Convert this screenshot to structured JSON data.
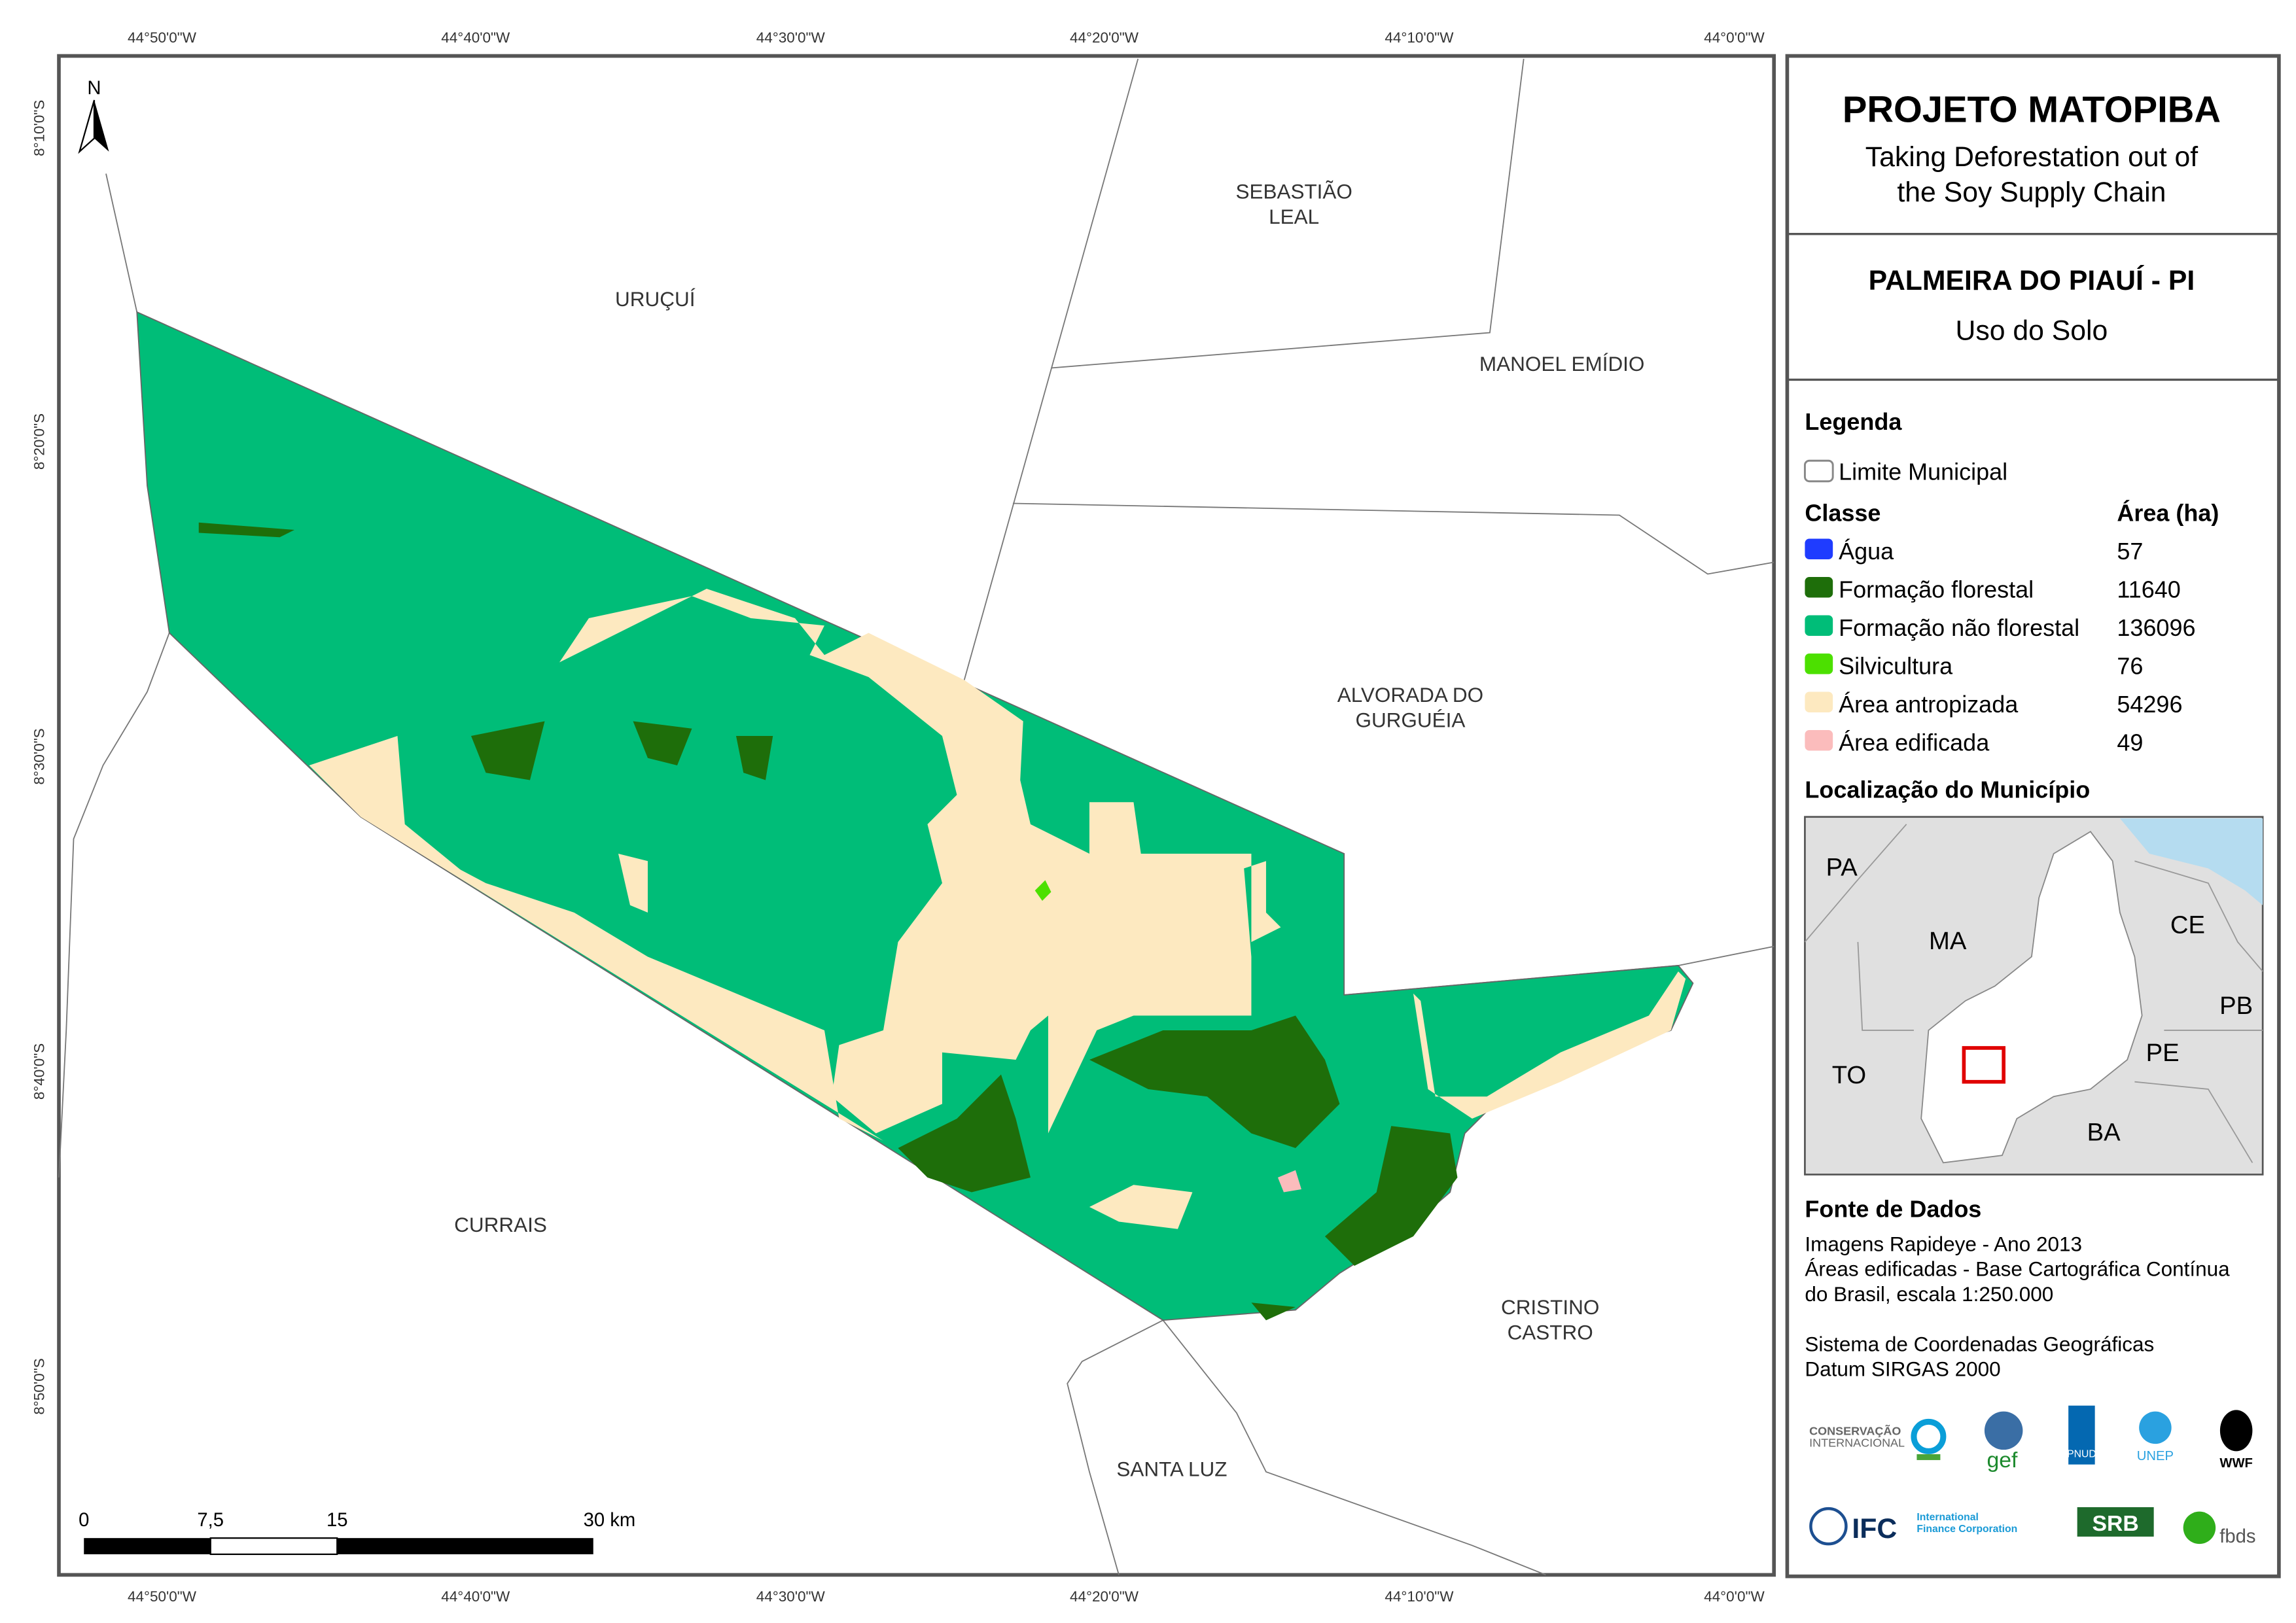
{
  "header": {
    "title": "PROJETO MATOPIBA",
    "subtitle_line1": "Taking Deforestation out of",
    "subtitle_line2": "the Soy Supply Chain",
    "municipality": "PALMEIRA DO PIAUÍ - PI",
    "theme": "Uso do Solo"
  },
  "legend": {
    "title": "Legenda",
    "boundary_label": "Limite Municipal",
    "class_header": "Classe",
    "area_header": "Área (ha)",
    "classes": [
      {
        "label": "Água",
        "area": "57",
        "color": "#1f3cff"
      },
      {
        "label": "Formação florestal",
        "area": "11640",
        "color": "#1e6e0a"
      },
      {
        "label": "Formação não florestal",
        "area": "136096",
        "color": "#00bd78"
      },
      {
        "label": "Silvicultura",
        "area": "76",
        "color": "#4ce000"
      },
      {
        "label": "Área antropizada",
        "area": "54296",
        "color": "#fde9c0"
      },
      {
        "label": "Área edificada",
        "area": "49",
        "color": "#fbbcbc"
      }
    ]
  },
  "location": {
    "title": "Localização do Município",
    "states": [
      "PA",
      "MA",
      "CE",
      "PB",
      "PE",
      "TO",
      "BA"
    ]
  },
  "sources": {
    "title": "Fonte de Dados",
    "lines": [
      "Imagens Rapideye - Ano 2013",
      "Áreas edificadas - Base Cartográfica Contínua",
      "do Brasil, escala 1:250.000",
      "Sistema de Coordenadas Geográficas",
      "Datum SIRGAS 2000"
    ]
  },
  "logos": [
    "CONSERVAÇÃO INTERNACIONAL Brasil",
    "gef",
    "PNUD",
    "UNEP FINANCE INITIATIVE",
    "WWF",
    "IFC International Finance Corporation WORLD BANK GROUP",
    "SRB SOCIEDADE RURAL BRASILEIRA",
    "fbds"
  ],
  "map": {
    "north_label": "N",
    "lon_labels": [
      "44°50'0\"W",
      "44°40'0\"W",
      "44°30'0\"W",
      "44°20'0\"W",
      "44°10'0\"W",
      "44°0'0\"W"
    ],
    "lat_labels": [
      "8°10'0\"S",
      "8°20'0\"S",
      "8°30'0\"S",
      "8°40'0\"S",
      "8°50'0\"S"
    ],
    "places": {
      "urucui": "URUÇUÍ",
      "sebastiao1": "SEBASTIÃO",
      "sebastiao2": "LEAL",
      "manoel": "MANOEL EMÍDIO",
      "alvorada1": "ALVORADA DO",
      "alvorada2": "GURGUÉIA",
      "currais": "CURRAIS",
      "cristino1": "CRISTINO",
      "cristino2": "CASTRO",
      "santaluz": "SANTA LUZ"
    },
    "scale": {
      "l0": "0",
      "l1": "7,5",
      "l2": "15",
      "l3": "30 km"
    }
  }
}
